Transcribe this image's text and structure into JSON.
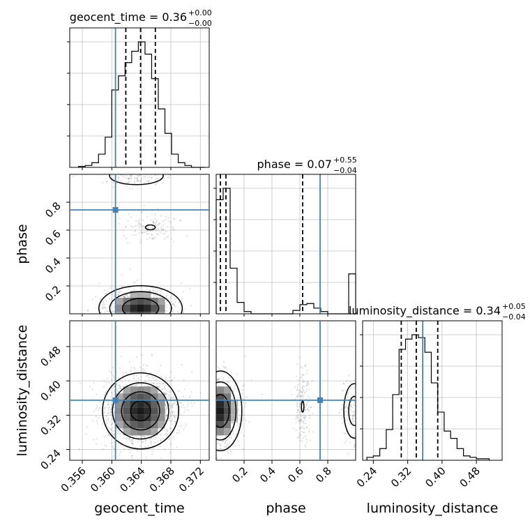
{
  "chart_data": {
    "type": "corner",
    "parameters": [
      "geocent_time",
      "phase",
      "luminosity_distance"
    ],
    "truth": {
      "geocent_time": 0.3605,
      "phase": 0.745,
      "luminosity_distance": 0.355
    },
    "truth_color": "#4682b4",
    "titles": [
      {
        "param": "geocent_time",
        "text": "geocent_time = 0.36",
        "sup": "+0.00",
        "sub": "−0.00"
      },
      {
        "param": "phase",
        "text": "phase = 0.07",
        "sup": "+0.55",
        "sub": "−0.04"
      },
      {
        "param": "luminosity_distance",
        "text": "luminosity_distance = 0.34",
        "sup": "+0.05",
        "sub": "−0.04"
      }
    ],
    "ranges": {
      "geocent_time": [
        0.3543,
        0.3732
      ],
      "phase": [
        0.0,
        1.0
      ],
      "luminosity_distance": [
        0.215,
        0.54
      ]
    },
    "ticks": {
      "geocent_time": [
        "0.356",
        "0.360",
        "0.364",
        "0.368",
        "0.372"
      ],
      "phase_y": [
        "0.2",
        "0.4",
        "0.6",
        "0.8"
      ],
      "phase_x": [
        "0.2",
        "0.4",
        "0.6",
        "0.8"
      ],
      "luminosity_distance_y": [
        "0.24",
        "0.32",
        "0.40",
        "0.48"
      ],
      "luminosity_distance_x": [
        "0.24",
        "0.32",
        "0.40",
        "0.48"
      ]
    },
    "quantiles": {
      "geocent_time": [
        0.3619,
        0.3639,
        0.3659
      ],
      "phase": [
        0.03,
        0.07,
        0.62
      ],
      "luminosity_distance": [
        0.305,
        0.34,
        0.39
      ]
    },
    "histograms": {
      "geocent_time": {
        "bin_edges": [
          0.3555,
          0.3564,
          0.3573,
          0.3582,
          0.3591,
          0.36,
          0.3609,
          0.3618,
          0.3627,
          0.3636,
          0.3645,
          0.3654,
          0.3663,
          0.3672,
          0.3681,
          0.369,
          0.3699,
          0.3708,
          0.3717,
          0.3726
        ],
        "counts": [
          1,
          2,
          5,
          14,
          32,
          82,
          97,
          111,
          123,
          133,
          120,
          94,
          62,
          36,
          14,
          5,
          2,
          0,
          0
        ]
      },
      "phase": {
        "bin_edges": [
          0.0,
          0.05,
          0.1,
          0.15,
          0.2,
          0.25,
          0.3,
          0.35,
          0.4,
          0.45,
          0.5,
          0.55,
          0.6,
          0.65,
          0.7,
          0.75,
          0.8,
          0.85,
          0.9,
          0.95,
          1.0
        ],
        "counts": [
          100,
          110,
          40,
          10,
          2,
          0,
          0,
          0,
          0,
          0,
          0,
          3,
          8,
          9,
          5,
          2,
          0,
          0,
          0,
          35
        ]
      },
      "luminosity_distance": {
        "bin_edges": [
          0.225,
          0.24,
          0.255,
          0.27,
          0.285,
          0.3,
          0.315,
          0.33,
          0.345,
          0.36,
          0.375,
          0.39,
          0.405,
          0.42,
          0.435,
          0.45,
          0.465,
          0.48,
          0.495,
          0.51
        ],
        "counts": [
          2,
          3,
          8,
          21,
          45,
          76,
          83,
          86,
          84,
          74,
          53,
          33,
          20,
          15,
          8,
          3,
          2,
          1,
          1
        ]
      }
    },
    "modes": {
      "phase": [
        {
          "center": 0.03,
          "weight": 0.85
        },
        {
          "center": 0.65,
          "weight": 0.08
        },
        {
          "center": 0.97,
          "weight": 0.07
        }
      ]
    }
  }
}
